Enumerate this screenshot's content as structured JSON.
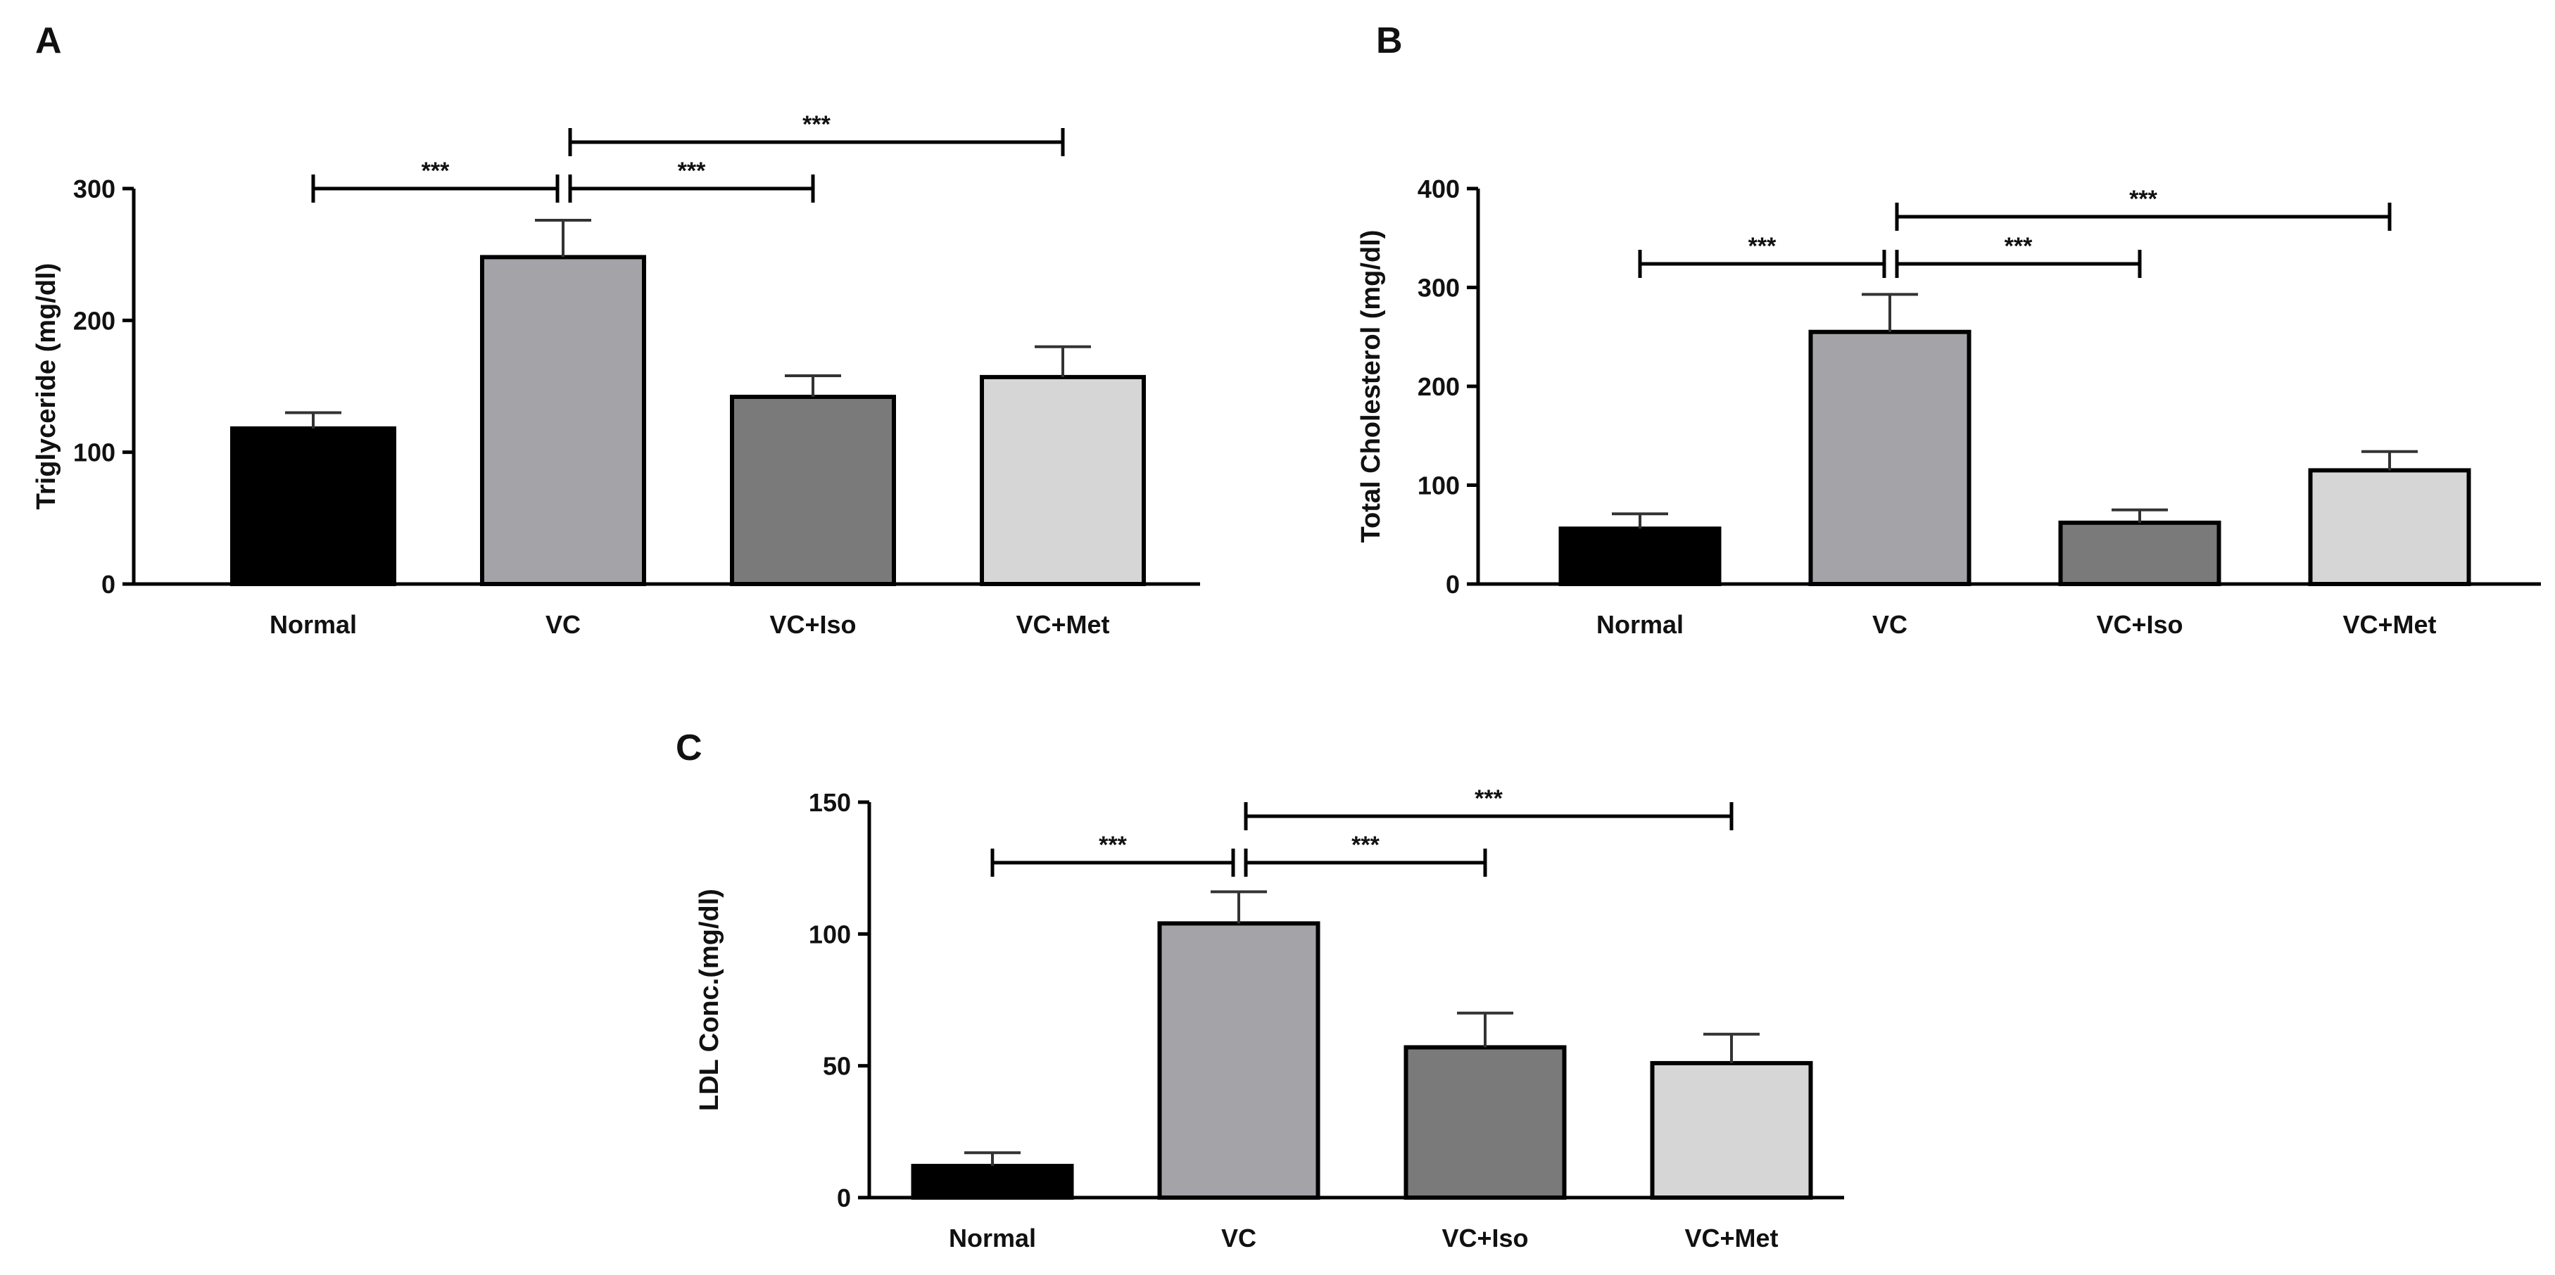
{
  "colors": {
    "Normal": "#000000",
    "VC": "#a3a3a8",
    "VC+Iso": "#7a7a7a",
    "VC+Met": "#d6d6d6",
    "axis": "#000000"
  },
  "chart_data": [
    {
      "panel": "A",
      "type": "bar",
      "categories": [
        "Normal",
        "VC",
        "VC+Iso",
        "VC+Met"
      ],
      "values": [
        118,
        248,
        142,
        157
      ],
      "errors": [
        12,
        28,
        16,
        23
      ],
      "ylabel": "Triglyceride (mg/dl)",
      "ylim": [
        0,
        300
      ],
      "yticks": [
        0,
        100,
        200,
        300
      ],
      "comparisons": [
        {
          "from": 0,
          "to": 1,
          "label": "***",
          "level": 0
        },
        {
          "from": 1,
          "to": 2,
          "label": "***",
          "level": 0
        },
        {
          "from": 1,
          "to": 3,
          "label": "***",
          "level": 1
        }
      ]
    },
    {
      "panel": "B",
      "type": "bar",
      "categories": [
        "Normal",
        "VC",
        "VC+Iso",
        "VC+Met"
      ],
      "values": [
        56,
        255,
        62,
        115
      ],
      "errors": [
        15,
        38,
        13,
        19
      ],
      "ylabel": "Total Cholesterol (mg/dl)",
      "ylim": [
        0,
        400
      ],
      "yticks": [
        0,
        100,
        200,
        300,
        400
      ],
      "comparisons": [
        {
          "from": 0,
          "to": 1,
          "label": "***",
          "level": 0
        },
        {
          "from": 1,
          "to": 2,
          "label": "***",
          "level": 0
        },
        {
          "from": 1,
          "to": 3,
          "label": "***",
          "level": 1
        }
      ]
    },
    {
      "panel": "C",
      "type": "bar",
      "categories": [
        "Normal",
        "VC",
        "VC+Iso",
        "VC+Met"
      ],
      "values": [
        12,
        104,
        57,
        51
      ],
      "errors": [
        5,
        12,
        13,
        11
      ],
      "ylabel": "LDL Conc.(mg/dl)",
      "ylim": [
        0,
        150
      ],
      "yticks": [
        0,
        50,
        100,
        150
      ],
      "comparisons": [
        {
          "from": 0,
          "to": 1,
          "label": "***",
          "level": 0
        },
        {
          "from": 1,
          "to": 2,
          "label": "***",
          "level": 0
        },
        {
          "from": 1,
          "to": 3,
          "label": "***",
          "level": 1
        }
      ]
    }
  ]
}
